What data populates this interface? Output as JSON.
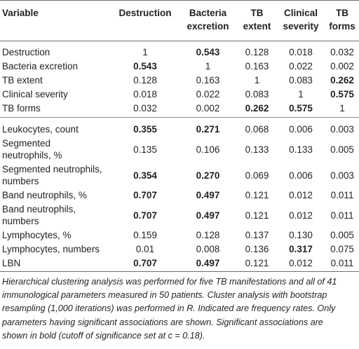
{
  "columns": [
    [
      "Variable"
    ],
    [
      "Destruction"
    ],
    [
      "Bacteria",
      "excretion"
    ],
    [
      "TB",
      "extent"
    ],
    [
      "Clinical",
      "severity"
    ],
    [
      "TB",
      "forms"
    ]
  ],
  "groups": [
    {
      "rows": [
        {
          "label": [
            "Destruction"
          ],
          "cells": [
            {
              "v": "1",
              "b": false
            },
            {
              "v": "0.543",
              "b": true
            },
            {
              "v": "0.128",
              "b": false
            },
            {
              "v": "0.018",
              "b": false
            },
            {
              "v": "0.032",
              "b": false
            }
          ]
        },
        {
          "label": [
            "Bacteria excretion"
          ],
          "cells": [
            {
              "v": "0.543",
              "b": true
            },
            {
              "v": "1",
              "b": false
            },
            {
              "v": "0.163",
              "b": false
            },
            {
              "v": "0.022",
              "b": false
            },
            {
              "v": "0.002",
              "b": false
            }
          ]
        },
        {
          "label": [
            "TB extent"
          ],
          "cells": [
            {
              "v": "0.128",
              "b": false
            },
            {
              "v": "0.163",
              "b": false
            },
            {
              "v": "1",
              "b": false
            },
            {
              "v": "0.083",
              "b": false
            },
            {
              "v": "0.262",
              "b": true
            }
          ]
        },
        {
          "label": [
            "Clinical severity"
          ],
          "cells": [
            {
              "v": "0.018",
              "b": false
            },
            {
              "v": "0.022",
              "b": false
            },
            {
              "v": "0.083",
              "b": false
            },
            {
              "v": "1",
              "b": false
            },
            {
              "v": "0.575",
              "b": true
            }
          ]
        },
        {
          "label": [
            "TB forms"
          ],
          "cells": [
            {
              "v": "0.032",
              "b": false
            },
            {
              "v": "0.002",
              "b": false
            },
            {
              "v": "0.262",
              "b": true
            },
            {
              "v": "0.575",
              "b": true
            },
            {
              "v": "1",
              "b": false
            }
          ]
        }
      ]
    },
    {
      "rows": [
        {
          "label": [
            "Leukocytes, count"
          ],
          "cells": [
            {
              "v": "0.355",
              "b": true
            },
            {
              "v": "0.271",
              "b": true
            },
            {
              "v": "0.068",
              "b": false
            },
            {
              "v": "0.006",
              "b": false
            },
            {
              "v": "0.003",
              "b": false
            }
          ]
        },
        {
          "label": [
            "Segmented",
            "neutrophils, %"
          ],
          "cells": [
            {
              "v": "0.135",
              "b": false
            },
            {
              "v": "0.106",
              "b": false
            },
            {
              "v": "0.133",
              "b": false
            },
            {
              "v": "0.133",
              "b": false
            },
            {
              "v": "0.005",
              "b": false
            }
          ]
        },
        {
          "label": [
            "Segmented neutrophils,",
            "numbers"
          ],
          "cells": [
            {
              "v": "0.354",
              "b": true
            },
            {
              "v": "0.270",
              "b": true
            },
            {
              "v": "0.069",
              "b": false
            },
            {
              "v": "0.006",
              "b": false
            },
            {
              "v": "0.003",
              "b": false
            }
          ]
        },
        {
          "label": [
            "Band neutrophils, %"
          ],
          "cells": [
            {
              "v": "0.707",
              "b": true
            },
            {
              "v": "0.497",
              "b": true
            },
            {
              "v": "0.121",
              "b": false
            },
            {
              "v": "0.012",
              "b": false
            },
            {
              "v": "0.011",
              "b": false
            }
          ]
        },
        {
          "label": [
            "Band neutrophils,",
            "numbers"
          ],
          "cells": [
            {
              "v": "0.707",
              "b": true
            },
            {
              "v": "0.497",
              "b": true
            },
            {
              "v": "0.121",
              "b": false
            },
            {
              "v": "0.012",
              "b": false
            },
            {
              "v": "0.011",
              "b": false
            }
          ]
        },
        {
          "label": [
            "Lymphocytes, %"
          ],
          "cells": [
            {
              "v": "0.159",
              "b": false
            },
            {
              "v": "0.128",
              "b": false
            },
            {
              "v": "0.137",
              "b": false
            },
            {
              "v": "0.130",
              "b": false
            },
            {
              "v": "0.005",
              "b": false
            }
          ]
        },
        {
          "label": [
            "Lymphocytes, numbers"
          ],
          "cells": [
            {
              "v": "0.01",
              "b": false
            },
            {
              "v": "0.008",
              "b": false
            },
            {
              "v": "0.136",
              "b": false
            },
            {
              "v": "0.317",
              "b": true
            },
            {
              "v": "0.075",
              "b": false
            }
          ]
        },
        {
          "label": [
            "LBN"
          ],
          "cells": [
            {
              "v": "0.707",
              "b": true
            },
            {
              "v": "0.497",
              "b": true
            },
            {
              "v": "0.121",
              "b": false
            },
            {
              "v": "0.012",
              "b": false
            },
            {
              "v": "0.011",
              "b": false
            }
          ]
        }
      ]
    }
  ],
  "caption": [
    "Hierarchical clustering analysis was performed for five TB manifestations and all of 41",
    "immunological parameters measured in 50 patients. Cluster analysis with bootstrap",
    "resampling (1,000 iterations) was performed in R. Indicated are frequency rates. Only",
    "parameters having significant associations are shown. Significant associations are",
    "shown in bold (cutoff of significance set at c = 0.18)."
  ]
}
